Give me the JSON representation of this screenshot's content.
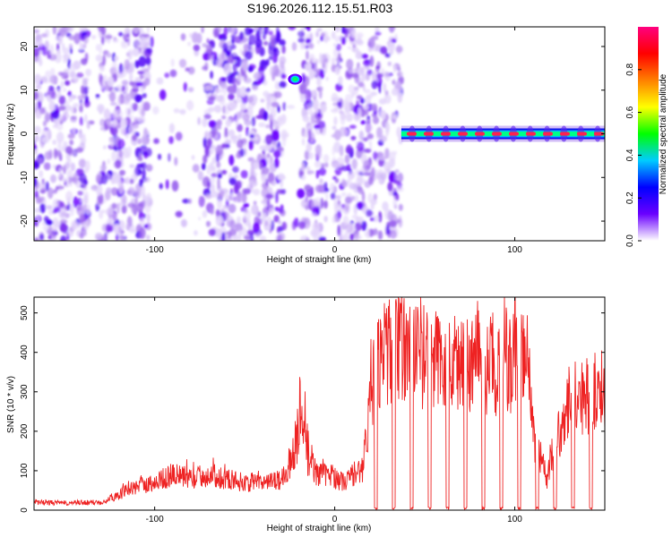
{
  "title": "S196.2026.112.15.51.R03",
  "chart_data": [
    {
      "type": "heatmap",
      "xlabel": "Height of straight line (km)",
      "ylabel": "Frequency (Hz)",
      "xlim": [
        -167,
        150
      ],
      "ylim": [
        -24.5,
        24.5
      ],
      "x_ticks": [
        -100,
        0,
        100
      ],
      "y_ticks": [
        -20,
        -10,
        0,
        10,
        20
      ],
      "colorbar": {
        "label": "Normalized spectral amplitude",
        "range": [
          0,
          1
        ],
        "ticks": [
          0.0,
          0.2,
          0.4,
          0.6,
          0.8
        ],
        "stops": [
          "#ffffff",
          "#6a00ff",
          "#0000ff",
          "#00ccff",
          "#00ff00",
          "#ffff00",
          "#ff8000",
          "#ff0000",
          "#ff007f"
        ]
      },
      "features": {
        "noise_region_x": [
          -167,
          37
        ],
        "empty_gaps_x": [
          [
            -137,
            -132
          ],
          [
            -103,
            -73
          ],
          [
            -28,
            -19
          ],
          [
            -4,
            -1
          ]
        ],
        "tone_region_x": [
          37,
          150
        ],
        "tone_frequency_hz": 0,
        "hot_spot": {
          "x": -22,
          "y": 12.5,
          "amplitude": 0.6
        }
      }
    },
    {
      "type": "line",
      "xlabel": "Height of straight line (km)",
      "ylabel": "SNR (10 * v/v)",
      "xlim": [
        -167,
        150
      ],
      "ylim": [
        0,
        540
      ],
      "x_ticks": [
        -100,
        0,
        100
      ],
      "y_ticks": [
        0,
        100,
        200,
        300,
        400,
        500
      ],
      "line_color": "#ee2222",
      "series": [
        {
          "x": [
            -167,
            -150,
            -130,
            -120,
            -110,
            -100,
            -90,
            -80,
            -70,
            -60,
            -50,
            -40,
            -30,
            -25,
            -20,
            -18,
            -15,
            -10,
            -5,
            0,
            5,
            10,
            15,
            18,
            20,
            25,
            30,
            40,
            50,
            60,
            70,
            80,
            90,
            100,
            105,
            108,
            110,
            115,
            118,
            120,
            125,
            130,
            140,
            150
          ],
          "y": [
            20,
            18,
            20,
            40,
            60,
            70,
            90,
            80,
            90,
            80,
            70,
            70,
            75,
            120,
            180,
            250,
            130,
            95,
            90,
            85,
            70,
            90,
            95,
            200,
            300,
            390,
            400,
            410,
            390,
            380,
            370,
            380,
            360,
            370,
            375,
            370,
            200,
            120,
            80,
            140,
            200,
            290,
            290,
            310
          ]
        }
      ]
    }
  ]
}
